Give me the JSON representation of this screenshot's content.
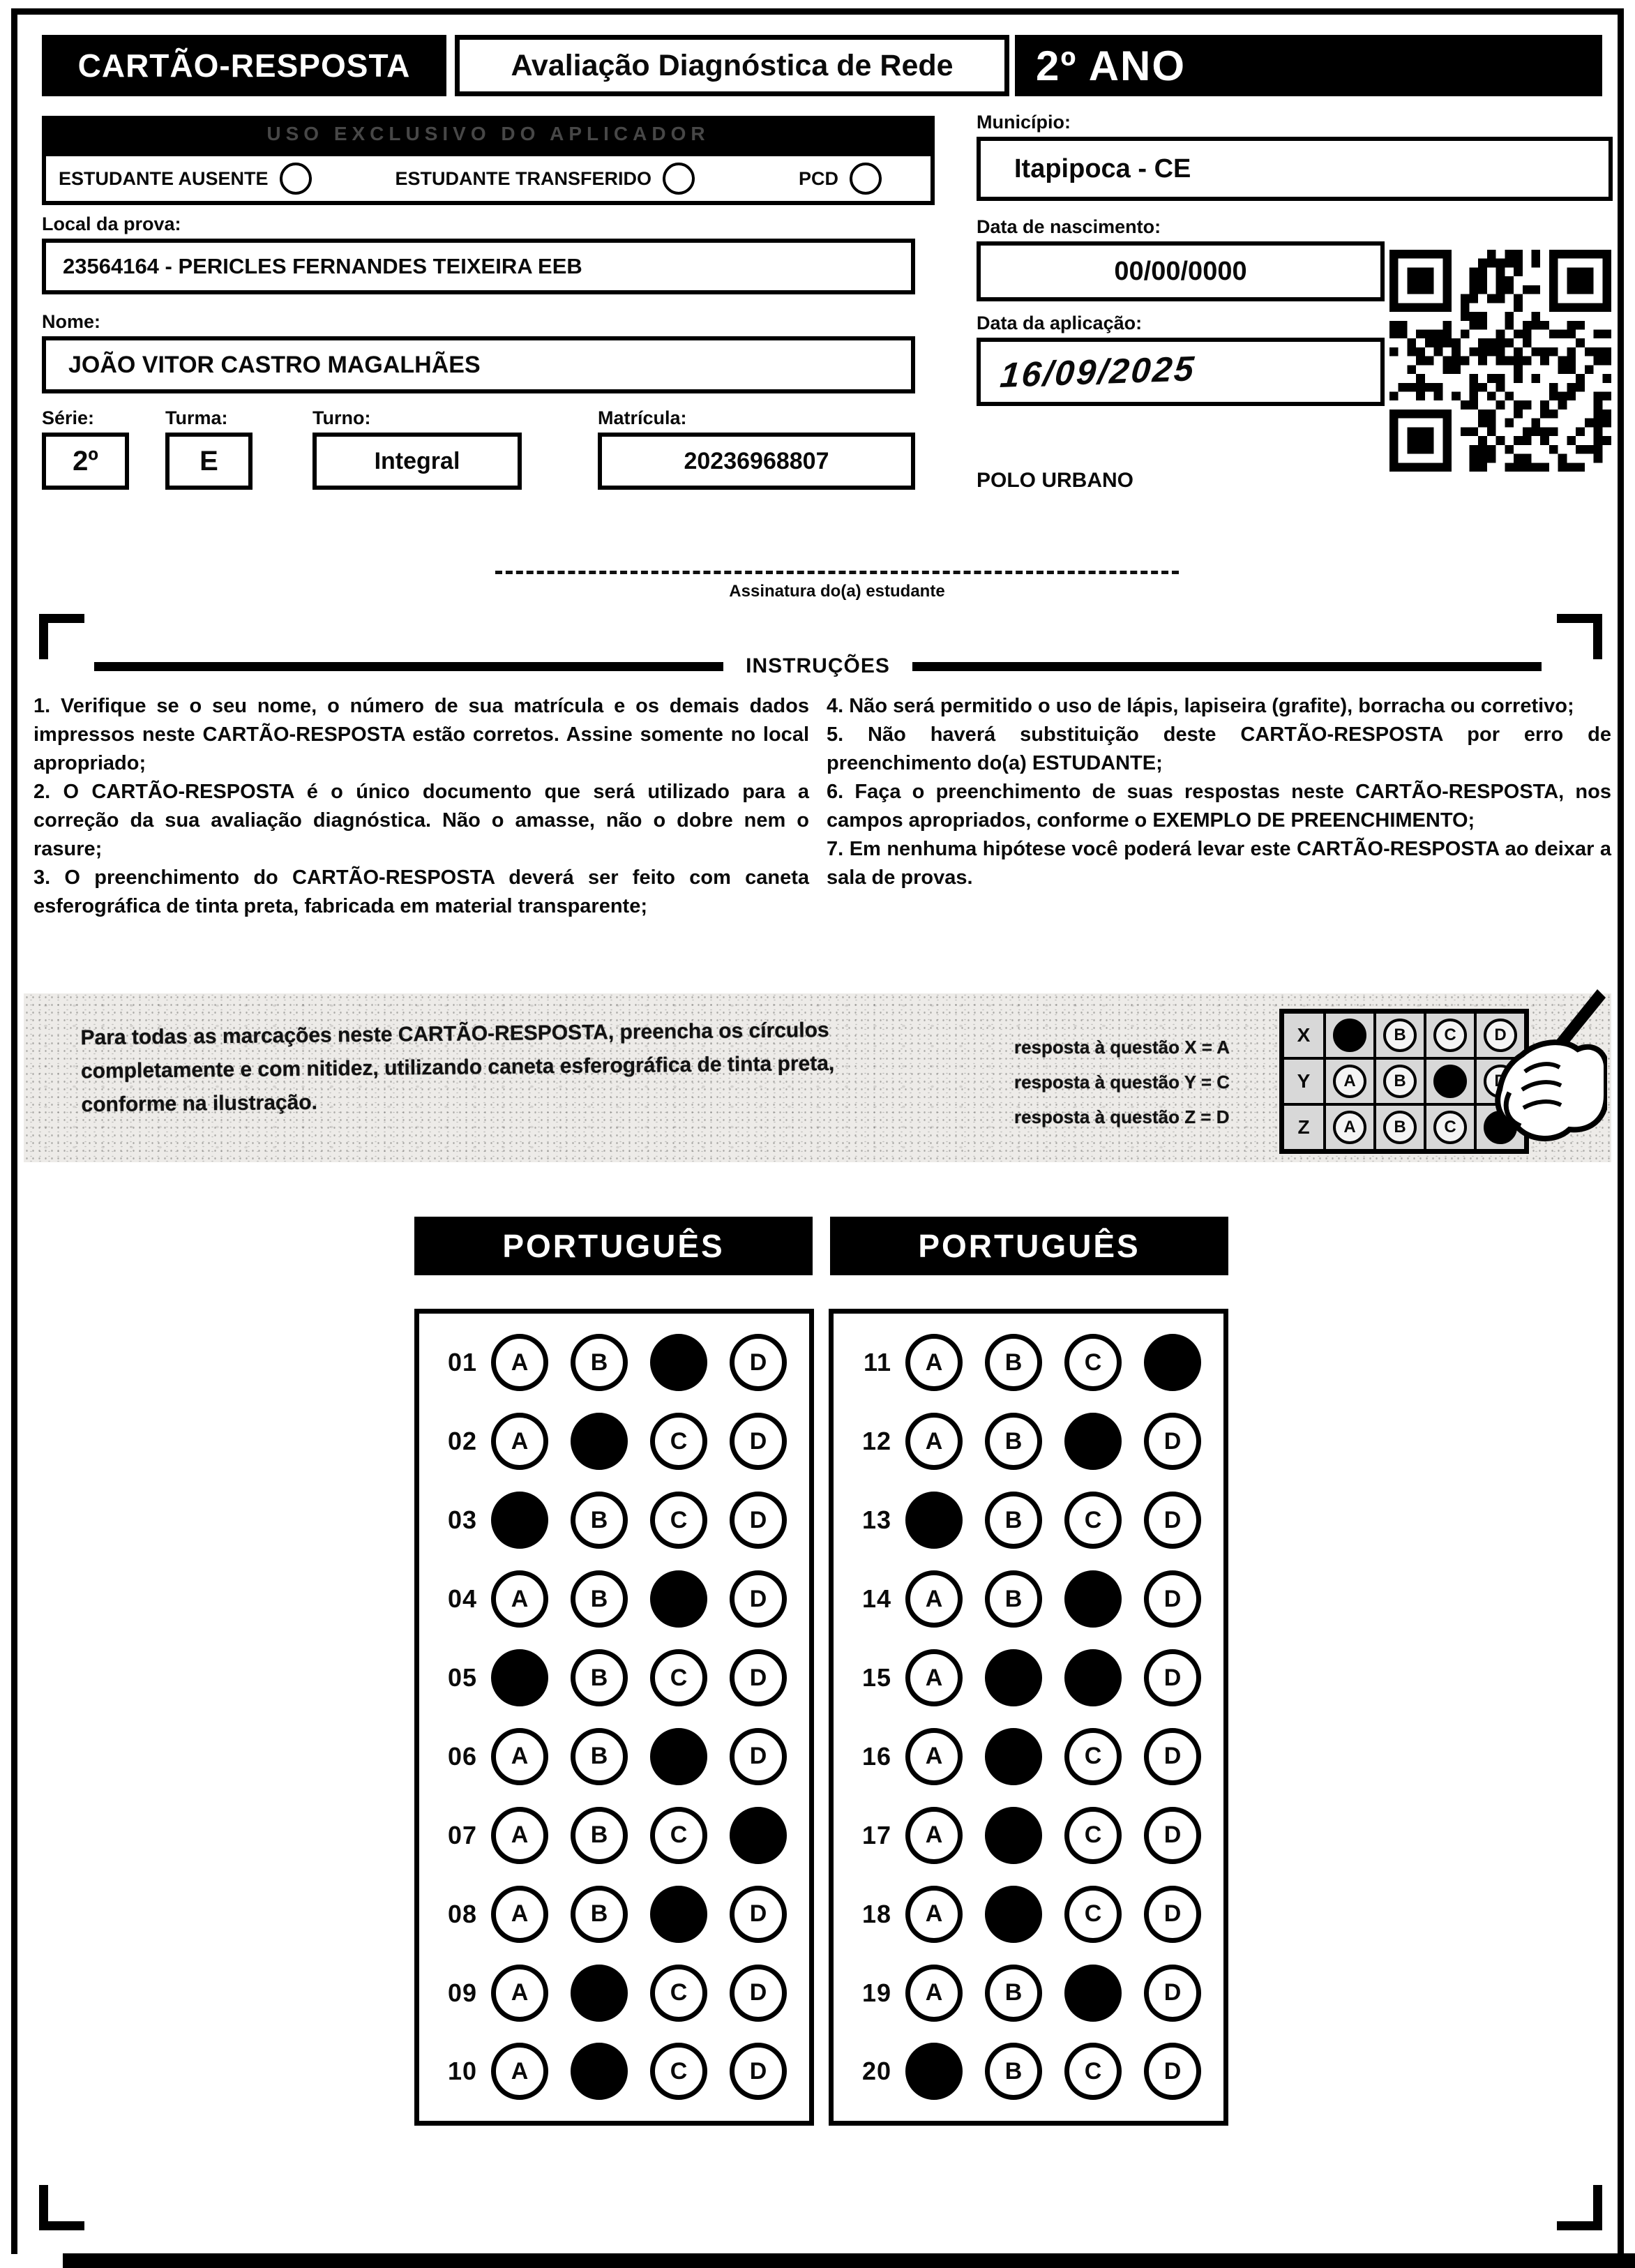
{
  "page": {
    "header": {
      "card_title": "CARTÃO-RESPOSTA",
      "assessment_title": "Avaliação Diagnóstica de Rede",
      "grade": "2º ANO"
    },
    "applicator_strip": "USO EXCLUSIVO DO APLICADOR",
    "status_options": [
      {
        "label": "ESTUDANTE AUSENTE"
      },
      {
        "label": "ESTUDANTE TRANSFERIDO"
      },
      {
        "label": "PCD"
      }
    ],
    "fields": {
      "local_label": "Local da prova:",
      "local_value": "23564164 - PERICLES FERNANDES TEIXEIRA EEB",
      "nome_label": "Nome:",
      "nome_value": "JOÃO VITOR CASTRO MAGALHÃES",
      "serie_label": "Série:",
      "serie_value": "2º",
      "turma_label": "Turma:",
      "turma_value": "E",
      "turno_label": "Turno:",
      "turno_value": "Integral",
      "matricula_label": "Matrícula:",
      "matricula_value": "20236968807",
      "municipio_label": "Município:",
      "municipio_value": "Itapipoca - CE",
      "nascimento_label": "Data de nascimento:",
      "nascimento_value": "00/00/0000",
      "aplicacao_label": "Data da aplicação:",
      "aplicacao_value": "16/09/2025",
      "polo": "POLO URBANO"
    },
    "signature_label": "Assinatura do(a) estudante",
    "instructions": {
      "title": "INSTRUÇÕES",
      "left": [
        "1. Verifique se o seu nome, o número de sua matrícula e os demais dados impressos neste CARTÃO-RESPOSTA estão corretos. Assine somente no local apropriado;",
        "2. O CARTÃO-RESPOSTA é o único documento que será utilizado para a correção da sua avaliação diagnóstica. Não o amasse, não o dobre nem o rasure;",
        "3. O preenchimento do CARTÃO-RESPOSTA deverá ser feito com caneta esferográfica de tinta preta, fabricada em material transparente;"
      ],
      "right": [
        "4. Não será permitido o uso de lápis, lapiseira (grafite), borracha ou corretivo;",
        "5. Não haverá substituição deste CARTÃO-RESPOSTA por erro de preenchimento do(a) ESTUDANTE;",
        "6. Faça o preenchimento de suas respostas neste CARTÃO-RESPOSTA, nos campos apropriados, conforme o EXEMPLO DE PREENCHIMENTO;",
        "7. Em nenhuma hipótese você poderá levar este CARTÃO-RESPOSTA ao deixar a sala de provas."
      ]
    },
    "example": {
      "note": "Para todas as marcações neste CARTÃO-RESPOSTA, preencha os círculos completamente e com nitidez, utilizando caneta esferográfica de tinta preta, conforme na ilustração.",
      "answer_notes": [
        "resposta à questão X = A",
        "resposta à questão Y = C",
        "resposta à questão Z = D"
      ],
      "grid_rows": [
        {
          "label": "X",
          "filled": "A"
        },
        {
          "label": "Y",
          "filled": "C"
        },
        {
          "label": "Z",
          "filled": "D"
        }
      ]
    },
    "options": [
      "A",
      "B",
      "C",
      "D"
    ],
    "answer_sections": [
      {
        "subject": "PORTUGUÊS",
        "questions": [
          {
            "number": "01",
            "filled": [
              "C"
            ]
          },
          {
            "number": "02",
            "filled": [
              "B"
            ]
          },
          {
            "number": "03",
            "filled": [
              "A"
            ]
          },
          {
            "number": "04",
            "filled": [
              "C"
            ]
          },
          {
            "number": "05",
            "filled": [
              "A"
            ]
          },
          {
            "number": "06",
            "filled": [
              "C"
            ]
          },
          {
            "number": "07",
            "filled": [
              "D"
            ]
          },
          {
            "number": "08",
            "filled": [
              "C"
            ]
          },
          {
            "number": "09",
            "filled": [
              "B"
            ]
          },
          {
            "number": "10",
            "filled": [
              "B"
            ]
          }
        ]
      },
      {
        "subject": "PORTUGUÊS",
        "questions": [
          {
            "number": "11",
            "filled": [
              "D"
            ]
          },
          {
            "number": "12",
            "filled": [
              "C"
            ]
          },
          {
            "number": "13",
            "filled": [
              "A"
            ]
          },
          {
            "number": "14",
            "filled": [
              "C"
            ]
          },
          {
            "number": "15",
            "filled": [
              "B",
              "C"
            ]
          },
          {
            "number": "16",
            "filled": [
              "B"
            ]
          },
          {
            "number": "17",
            "filled": [
              "B"
            ]
          },
          {
            "number": "18",
            "filled": [
              "B"
            ]
          },
          {
            "number": "19",
            "filled": [
              "C"
            ]
          },
          {
            "number": "20",
            "filled": [
              "A"
            ]
          }
        ]
      }
    ],
    "icons": {
      "qr_code": "qr-code",
      "hand_pen": "hand-holding-pen-icon"
    },
    "colors": {
      "ink": "#000000",
      "paper": "#ffffff",
      "band_bg": "#edebe8"
    }
  }
}
